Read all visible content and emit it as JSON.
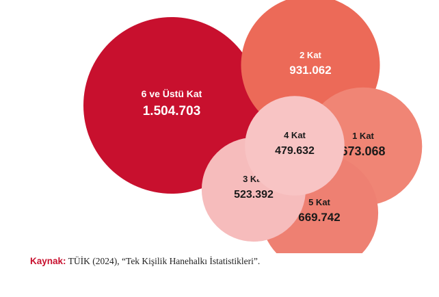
{
  "chart_data": {
    "type": "bubble",
    "title": "",
    "bubbles": [
      {
        "label": "6 ve Üstü Kat",
        "value": 1504703,
        "value_text": "1.504.703",
        "color": "#c8102e",
        "text_color": "#ffffff"
      },
      {
        "label": "2 Kat",
        "value": 931062,
        "value_text": "931.062",
        "color": "#ec6a58",
        "text_color": "#ffffff"
      },
      {
        "label": "1 Kat",
        "value": 673068,
        "value_text": "673.068",
        "color": "#f08575",
        "text_color": "#1a1a1a"
      },
      {
        "label": "5 Kat",
        "value": 669742,
        "value_text": "669.742",
        "color": "#ee8072",
        "text_color": "#1a1a1a"
      },
      {
        "label": "3 Kat",
        "value": 523392,
        "value_text": "523.392",
        "color": "#f6bcbc",
        "text_color": "#1a1a1a"
      },
      {
        "label": "4 Kat",
        "value": 479632,
        "value_text": "479.632",
        "color": "#f8c4c4",
        "text_color": "#1a1a1a"
      }
    ]
  },
  "source": {
    "prefix": "Kaynak:",
    "text": " TÜİK (2024), “Tek Kişilik Hanehalkı İstatistikleri”."
  }
}
